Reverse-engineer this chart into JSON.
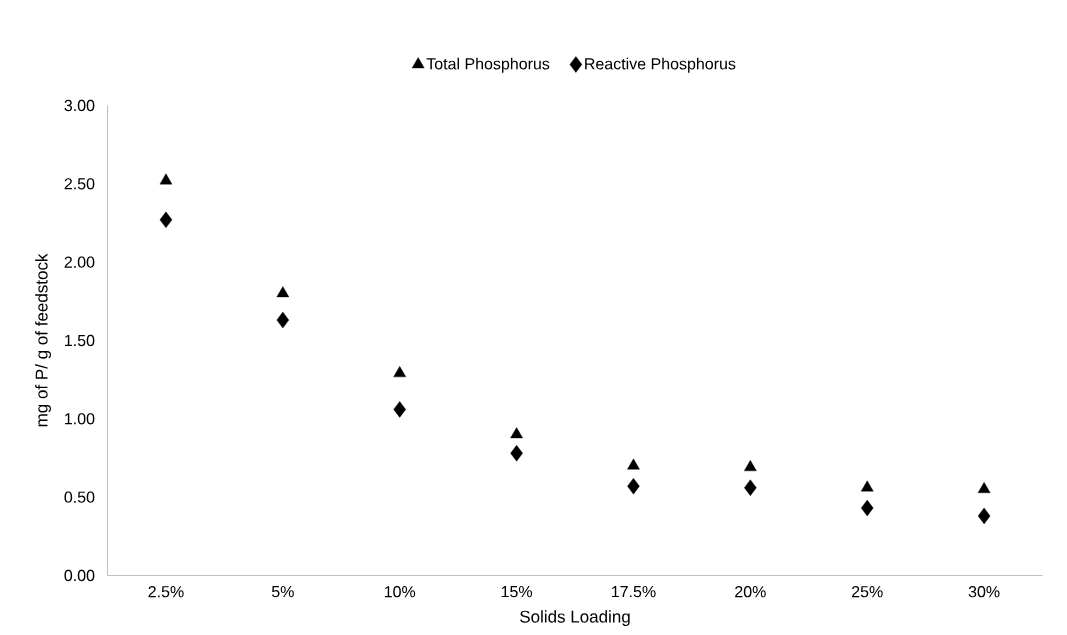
{
  "chart_data": {
    "type": "scatter",
    "xlabel": "Solids Loading",
    "ylabel": "mg of P/ g of feedstock",
    "categories": [
      "2.5%",
      "5%",
      "10%",
      "15%",
      "17.5%",
      "20%",
      "25%",
      "30%"
    ],
    "series": [
      {
        "name": "Total Phosphorus",
        "color": "#000000",
        "marker": "triangle",
        "values": [
          2.52,
          1.8,
          1.29,
          0.9,
          0.7,
          0.69,
          0.56,
          0.55
        ]
      },
      {
        "name": "Reactive Phosphorus",
        "color": "#000000",
        "marker": "diamond",
        "values": [
          2.27,
          1.63,
          1.06,
          0.78,
          0.57,
          0.56,
          0.43,
          0.38
        ]
      }
    ],
    "ylim": [
      0,
      3
    ],
    "yticks": [
      {
        "value": 0,
        "label": "0.00"
      },
      {
        "value": 0.5,
        "label": "0.50"
      },
      {
        "value": 1,
        "label": "1.00"
      },
      {
        "value": 1.5,
        "label": "1.50"
      },
      {
        "value": 2,
        "label": "2.00"
      },
      {
        "value": 2.5,
        "label": "2.50"
      },
      {
        "value": 3,
        "label": "3.00"
      }
    ],
    "grid": false,
    "legend": "top"
  }
}
